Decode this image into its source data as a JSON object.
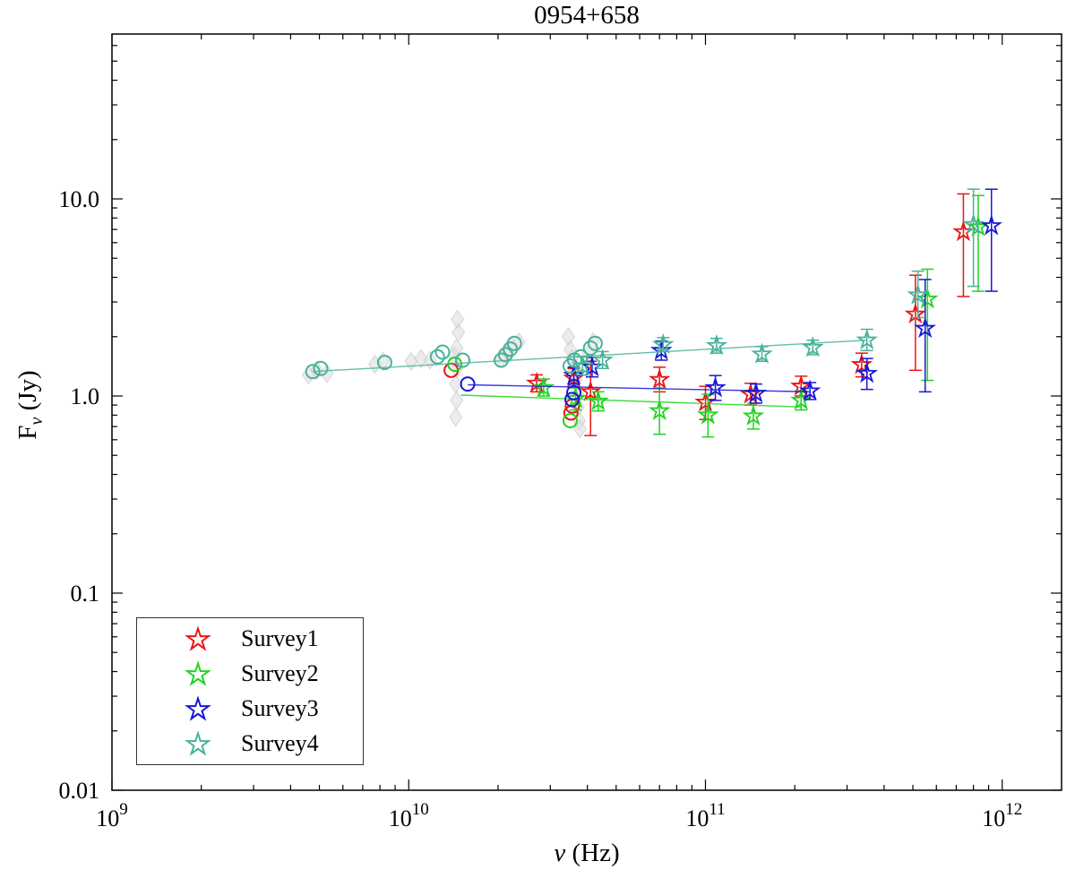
{
  "title": "0954+658",
  "axes": {
    "xlabel_symbol": "ν",
    "xlabel_unit": " (Hz)",
    "ylabel_main": "F",
    "ylabel_sub": "ν",
    "ylabel_unit": " (Jy)",
    "xtick_labels": [
      "10⁹",
      "10¹⁰",
      "10¹¹",
      "10¹²"
    ],
    "ytick_labels": [
      "0.01",
      "0.1",
      "1.0",
      "10.0"
    ]
  },
  "chart_data": {
    "type": "scatter",
    "title": "0954+658",
    "xlabel": "nu (Hz)",
    "ylabel": "F_nu (Jy)",
    "xscale": "log",
    "yscale": "log",
    "xlim": [
      1000000000.0,
      1585000000000.0
    ],
    "ylim": [
      0.01,
      68.6
    ],
    "grid": false,
    "legend_position": "lower-left",
    "xticks": [
      1000000000.0,
      10000000000.0,
      100000000000.0,
      1000000000000.0
    ],
    "yticks": [
      {
        "v": 0.01,
        "label": "0.01"
      },
      {
        "v": 0.1,
        "label": "0.1"
      },
      {
        "v": 1,
        "label": "1.0"
      },
      {
        "v": 10,
        "label": "10.0"
      }
    ],
    "background": {
      "name": "archival-data",
      "marker": "diamond",
      "color": "#d9d9d9",
      "edge_color": "#c9c9c9",
      "points": [
        [
          4600000000.0,
          1.28
        ],
        [
          4900000000.0,
          1.35
        ],
        [
          5300000000.0,
          1.3
        ],
        [
          7700000000.0,
          1.45
        ],
        [
          8200000000.0,
          1.5
        ],
        [
          10200000000.0,
          1.5
        ],
        [
          11000000000.0,
          1.55
        ],
        [
          11800000000.0,
          1.52
        ],
        [
          14200000000.0,
          1.6
        ],
        [
          14500000000.0,
          1.75
        ],
        [
          14500000000.0,
          1.38
        ],
        [
          14700000000.0,
          2.1
        ],
        [
          14600000000.0,
          2.45
        ],
        [
          14400000000.0,
          1.15
        ],
        [
          14500000000.0,
          0.95
        ],
        [
          14400000000.0,
          0.78
        ],
        [
          20500000000.0,
          1.55
        ],
        [
          21500000000.0,
          1.67
        ],
        [
          22200000000.0,
          1.8
        ],
        [
          23500000000.0,
          1.88
        ],
        [
          34500000000.0,
          2.0
        ],
        [
          35000000000.0,
          1.72
        ],
        [
          35500000000.0,
          1.55
        ],
        [
          36000000000.0,
          1.38
        ],
        [
          36500000000.0,
          1.2
        ],
        [
          37000000000.0,
          1.02
        ],
        [
          37200000000.0,
          0.88
        ],
        [
          37500000000.0,
          0.75
        ],
        [
          37800000000.0,
          0.68
        ],
        [
          40500000000.0,
          1.65
        ],
        [
          41800000000.0,
          1.88
        ]
      ]
    },
    "series": [
      {
        "name": "Survey1",
        "color": "#ea1515",
        "marker": "star",
        "stars": [
          [
            27000000000.0,
            1.16,
            1.05,
            1.28
          ],
          [
            36000000000.0,
            1.23,
            1.1,
            1.38
          ],
          [
            41000000000.0,
            1.05,
            0.63,
            1.5
          ],
          [
            70000000000.0,
            1.21,
            1.05,
            1.4
          ],
          [
            100000000000.0,
            0.93,
            0.76,
            1.12
          ],
          [
            142000000000.0,
            1.02,
            0.9,
            1.16
          ],
          [
            210000000000.0,
            1.12,
            1.0,
            1.26
          ],
          [
            336000000000.0,
            1.44,
            1.25,
            1.65
          ],
          [
            510000000000.0,
            2.6,
            1.35,
            4.1
          ],
          [
            740000000000.0,
            6.8,
            3.2,
            10.6
          ]
        ],
        "circles": [
          [
            13900000000.0,
            1.35
          ],
          [
            35200000000.0,
            0.82
          ],
          [
            35600000000.0,
            0.89
          ]
        ],
        "line": []
      },
      {
        "name": "Survey2",
        "color": "#1fd41f",
        "marker": "star",
        "stars": [
          [
            28500000000.0,
            1.1,
            1.0,
            1.22
          ],
          [
            36500000000.0,
            0.97,
            0.85,
            1.1
          ],
          [
            43500000000.0,
            0.94,
            0.84,
            1.05
          ],
          [
            70000000000.0,
            0.84,
            0.64,
            1.1
          ],
          [
            102000000000.0,
            0.8,
            0.62,
            1.02
          ],
          [
            145000000000.0,
            0.79,
            0.68,
            0.92
          ],
          [
            210000000000.0,
            0.95,
            0.85,
            1.06
          ],
          [
            560000000000.0,
            3.1,
            1.2,
            4.4
          ],
          [
            830000000000.0,
            7.2,
            3.4,
            10.4
          ]
        ],
        "circles": [
          [
            14300000000.0,
            1.45
          ],
          [
            35000000000.0,
            0.75
          ]
        ],
        "line": [
          [
            15000000000.0,
            1.01
          ],
          [
            210000000000.0,
            0.88
          ]
        ]
      },
      {
        "name": "Survey3",
        "color": "#1717d8",
        "marker": "star",
        "stars": [
          [
            36000000000.0,
            1.27,
            1.15,
            1.4
          ],
          [
            41500000000.0,
            1.4,
            1.25,
            1.57
          ],
          [
            71000000000.0,
            1.7,
            1.52,
            1.9
          ],
          [
            108000000000.0,
            1.1,
            0.95,
            1.27
          ],
          [
            148000000000.0,
            1.03,
            0.92,
            1.15
          ],
          [
            225000000000.0,
            1.06,
            0.96,
            1.17
          ],
          [
            350000000000.0,
            1.3,
            1.08,
            1.55
          ],
          [
            550000000000.0,
            2.2,
            1.05,
            3.9
          ],
          [
            920000000000.0,
            7.3,
            3.4,
            11.2
          ]
        ],
        "circles": [
          [
            15800000000.0,
            1.15
          ],
          [
            35500000000.0,
            0.96
          ],
          [
            36000000000.0,
            1.04
          ]
        ],
        "line": [
          [
            15800000000.0,
            1.14
          ],
          [
            225000000000.0,
            1.05
          ]
        ]
      },
      {
        "name": "Survey4",
        "color": "#48b29b",
        "marker": "star",
        "stars": [
          [
            38500000000.0,
            1.42,
            1.28,
            1.58
          ],
          [
            45000000000.0,
            1.52,
            1.38,
            1.68
          ],
          [
            72000000000.0,
            1.82,
            1.68,
            1.98
          ],
          [
            109000000000.0,
            1.8,
            1.65,
            1.96
          ],
          [
            155000000000.0,
            1.63,
            1.5,
            1.78
          ],
          [
            230000000000.0,
            1.76,
            1.62,
            1.92
          ],
          [
            350000000000.0,
            1.92,
            1.7,
            2.18
          ],
          [
            520000000000.0,
            3.25,
            2.5,
            4.3
          ],
          [
            800000000000.0,
            7.4,
            3.6,
            11.2
          ]
        ],
        "circles": [
          [
            4750000000.0,
            1.33
          ],
          [
            5050000000.0,
            1.38
          ],
          [
            8300000000.0,
            1.48
          ],
          [
            12500000000.0,
            1.58
          ],
          [
            13000000000.0,
            1.67
          ],
          [
            15200000000.0,
            1.52
          ],
          [
            20500000000.0,
            1.52
          ],
          [
            21200000000.0,
            1.62
          ],
          [
            22000000000.0,
            1.73
          ],
          [
            22700000000.0,
            1.85
          ],
          [
            35000000000.0,
            1.42
          ],
          [
            36200000000.0,
            1.52
          ],
          [
            38000000000.0,
            1.58
          ],
          [
            41000000000.0,
            1.75
          ],
          [
            42500000000.0,
            1.85
          ]
        ],
        "line": [
          [
            4750000000.0,
            1.33
          ],
          [
            350000000000.0,
            1.92
          ]
        ]
      }
    ]
  }
}
